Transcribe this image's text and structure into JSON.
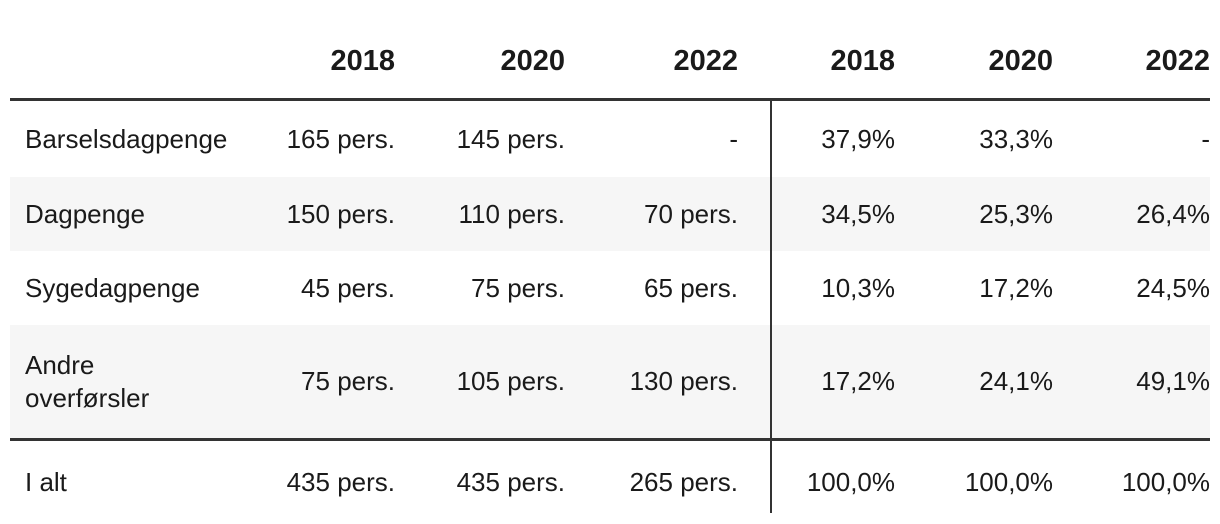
{
  "colors": {
    "text": "#1a1a1a",
    "rule_dark": "#333333",
    "row_stripe": "#f6f6f6",
    "background": "#ffffff"
  },
  "table": {
    "header_years": [
      "2018",
      "2020",
      "2022",
      "2018",
      "2020",
      "2022"
    ],
    "rows": [
      {
        "label": "Barselsdagpenge",
        "pers": [
          "165 pers.",
          "145 pers.",
          "-"
        ],
        "pct": [
          "37,9%",
          "33,3%",
          "-"
        ]
      },
      {
        "label": "Dagpenge",
        "pers": [
          "150 pers.",
          "110 pers.",
          "70 pers."
        ],
        "pct": [
          "34,5%",
          "25,3%",
          "26,4%"
        ]
      },
      {
        "label": "Sygedagpenge",
        "pers": [
          "45 pers.",
          "75 pers.",
          "65 pers."
        ],
        "pct": [
          "10,3%",
          "17,2%",
          "24,5%"
        ]
      },
      {
        "label": "Andre overførsler",
        "pers": [
          "75 pers.",
          "105 pers.",
          "130 pers."
        ],
        "pct": [
          "17,2%",
          "24,1%",
          "49,1%"
        ]
      }
    ],
    "total_row": {
      "label": "I alt",
      "pers": [
        "435 pers.",
        "435 pers.",
        "265 pers."
      ],
      "pct": [
        "100,0%",
        "100,0%",
        "100,0%"
      ]
    }
  },
  "chart_data": {
    "type": "table",
    "title": "",
    "columns": [
      "",
      "2018 (pers.)",
      "2020 (pers.)",
      "2022 (pers.)",
      "2018 (%)",
      "2020 (%)",
      "2022 (%)"
    ],
    "rows": [
      [
        "Barselsdagpenge",
        "165 pers.",
        "145 pers.",
        "-",
        "37,9%",
        "33,3%",
        "-"
      ],
      [
        "Dagpenge",
        "150 pers.",
        "110 pers.",
        "70 pers.",
        "34,5%",
        "25,3%",
        "26,4%"
      ],
      [
        "Sygedagpenge",
        "45 pers.",
        "75 pers.",
        "65 pers.",
        "10,3%",
        "17,2%",
        "24,5%"
      ],
      [
        "Andre overførsler",
        "75 pers.",
        "105 pers.",
        "130 pers.",
        "17,2%",
        "24,1%",
        "49,1%"
      ],
      [
        "I alt",
        "435 pers.",
        "435 pers.",
        "265 pers.",
        "100,0%",
        "100,0%",
        "100,0%"
      ]
    ],
    "notes": "Decimal comma (Danish locale); '-' indicates no value; vertical rule separates person counts from percentages; heavy rules under header and above total row"
  }
}
